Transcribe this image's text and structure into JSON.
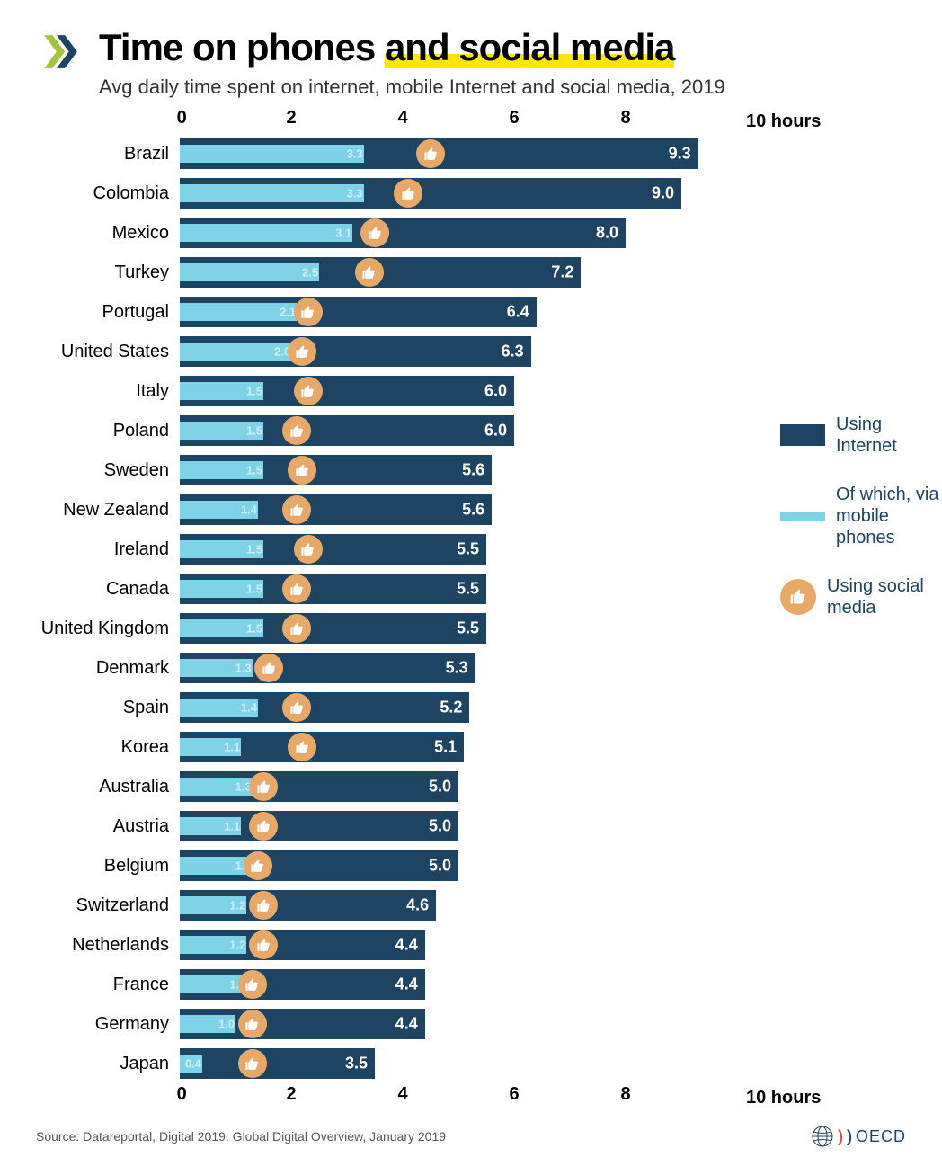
{
  "title_line1": "Time on phones ",
  "title_hl": "and social media",
  "subtitle": "Avg daily time spent on internet, mobile Internet and social media, 2019",
  "axis": {
    "ticks": [
      0,
      2,
      4,
      6,
      8
    ],
    "max": 10,
    "unit_label": "10 hours"
  },
  "colors": {
    "internet": "#1d4563",
    "mobile": "#7fd3e6",
    "social_badge": "#e8a968",
    "highlight": "#ffe600"
  },
  "legend": {
    "internet": "Using Internet",
    "mobile": "Of which, via mobile phones",
    "social": "Using social media"
  },
  "countries": [
    {
      "name": "Brazil",
      "internet": 9.3,
      "mobile": 3.3,
      "social": 4.5
    },
    {
      "name": "Colombia",
      "internet": 9.0,
      "mobile": 3.3,
      "social": 4.1
    },
    {
      "name": "Mexico",
      "internet": 8.0,
      "mobile": 3.1,
      "social": 3.5
    },
    {
      "name": "Turkey",
      "internet": 7.2,
      "mobile": 2.5,
      "social": 3.4
    },
    {
      "name": "Portugal",
      "internet": 6.4,
      "mobile": 2.1,
      "social": 2.3
    },
    {
      "name": "United States",
      "internet": 6.3,
      "mobile": 2.0,
      "social": 2.2
    },
    {
      "name": "Italy",
      "internet": 6.0,
      "mobile": 1.5,
      "social": 2.3
    },
    {
      "name": "Poland",
      "internet": 6.0,
      "mobile": 1.5,
      "social": 2.1
    },
    {
      "name": "Sweden",
      "internet": 5.6,
      "mobile": 1.5,
      "social": 2.2
    },
    {
      "name": "New Zealand",
      "internet": 5.6,
      "mobile": 1.4,
      "social": 2.1
    },
    {
      "name": "Ireland",
      "internet": 5.5,
      "mobile": 1.5,
      "social": 2.3
    },
    {
      "name": "Canada",
      "internet": 5.5,
      "mobile": 1.5,
      "social": 2.1
    },
    {
      "name": "United Kingdom",
      "internet": 5.5,
      "mobile": 1.5,
      "social": 2.1
    },
    {
      "name": "Denmark",
      "internet": 5.3,
      "mobile": 1.3,
      "social": 1.6
    },
    {
      "name": "Spain",
      "internet": 5.2,
      "mobile": 1.4,
      "social": 2.1
    },
    {
      "name": "Korea",
      "internet": 5.1,
      "mobile": 1.1,
      "social": 2.2
    },
    {
      "name": "Australia",
      "internet": 5.0,
      "mobile": 1.3,
      "social": 1.5
    },
    {
      "name": "Austria",
      "internet": 5.0,
      "mobile": 1.1,
      "social": 1.5
    },
    {
      "name": "Belgium",
      "internet": 5.0,
      "mobile": 1.3,
      "social": 1.4
    },
    {
      "name": "Switzerland",
      "internet": 4.6,
      "mobile": 1.2,
      "social": 1.5
    },
    {
      "name": "Netherlands",
      "internet": 4.4,
      "mobile": 1.2,
      "social": 1.5
    },
    {
      "name": "France",
      "internet": 4.4,
      "mobile": 1.2,
      "social": 1.3
    },
    {
      "name": "Germany",
      "internet": 4.4,
      "mobile": 1.0,
      "social": 1.3
    },
    {
      "name": "Japan",
      "internet": 3.5,
      "mobile": 0.4,
      "social": 1.3
    }
  ],
  "source": "Source: Datareportal, Digital 2019: Global Digital Overview, January 2019",
  "footer_logo": "OECD"
}
